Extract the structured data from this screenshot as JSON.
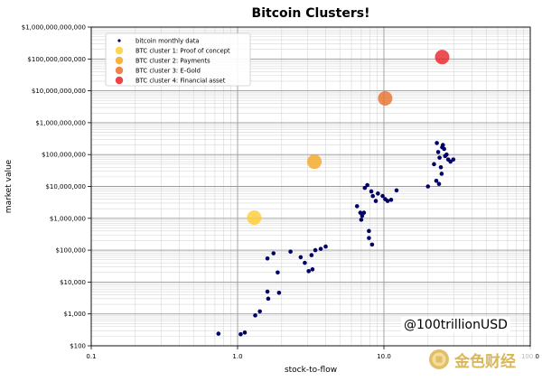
{
  "chart_data": {
    "type": "scatter",
    "title": "Bitcoin Clusters!",
    "xlabel": "stock-to-flow",
    "ylabel": "market value",
    "x_scale": "log",
    "y_scale": "log",
    "xlim": [
      0.1,
      100.0
    ],
    "ylim": [
      100,
      1000000000000
    ],
    "x_ticks": [
      {
        "value": 0.1,
        "label": "0.1"
      },
      {
        "value": 1.0,
        "label": "1.0"
      },
      {
        "value": 10.0,
        "label": "10.0"
      },
      {
        "value": 100.0,
        "label": "100.0"
      }
    ],
    "y_ticks": [
      {
        "value": 100,
        "label": "$100"
      },
      {
        "value": 1000,
        "label": "$1,000"
      },
      {
        "value": 10000,
        "label": "$10,000"
      },
      {
        "value": 100000,
        "label": "$100,000"
      },
      {
        "value": 1000000,
        "label": "$1,000,000"
      },
      {
        "value": 10000000,
        "label": "$10,000,000"
      },
      {
        "value": 100000000,
        "label": "$100,000,000"
      },
      {
        "value": 1000000000,
        "label": "$1,000,000,000"
      },
      {
        "value": 10000000000,
        "label": "$10,000,000,000"
      },
      {
        "value": 100000000000,
        "label": "$100,000,000,000"
      },
      {
        "value": 1000000000000,
        "label": "$1,000,000,000,000"
      }
    ],
    "grid": true,
    "legend_position": "top-left",
    "annotation": "@100trillionUSD",
    "series": [
      {
        "name": "bitcoin monthly data",
        "kind": "points",
        "color": "#000066",
        "points": [
          [
            0.74,
            240
          ],
          [
            1.05,
            230
          ],
          [
            1.12,
            260
          ],
          [
            1.32,
            900
          ],
          [
            1.42,
            1200
          ],
          [
            1.6,
            5000
          ],
          [
            1.62,
            3000
          ],
          [
            1.92,
            4600
          ],
          [
            1.88,
            20000
          ],
          [
            1.6,
            55000
          ],
          [
            1.76,
            80000
          ],
          [
            2.3,
            90000
          ],
          [
            2.7,
            60000
          ],
          [
            2.88,
            40000
          ],
          [
            3.06,
            22000
          ],
          [
            3.25,
            25000
          ],
          [
            3.2,
            70000
          ],
          [
            3.4,
            100000
          ],
          [
            3.7,
            110000
          ],
          [
            4.0,
            130000
          ],
          [
            6.55,
            2400000
          ],
          [
            6.9,
            1500000
          ],
          [
            7.1,
            1200000
          ],
          [
            7.3,
            1500000
          ],
          [
            7.0,
            900000
          ],
          [
            7.9,
            400000
          ],
          [
            7.9,
            240000
          ],
          [
            8.3,
            150000
          ],
          [
            7.4,
            9000000
          ],
          [
            7.7,
            11000000
          ],
          [
            8.2,
            7000000
          ],
          [
            8.4,
            5000000
          ],
          [
            8.8,
            3500000
          ],
          [
            9.1,
            6000000
          ],
          [
            9.8,
            5000000
          ],
          [
            10.2,
            4000000
          ],
          [
            10.6,
            3500000
          ],
          [
            11.2,
            3800000
          ],
          [
            12.2,
            7500000
          ],
          [
            20.0,
            10000000
          ],
          [
            22.0,
            50000000
          ],
          [
            22.8,
            15000000
          ],
          [
            23.0,
            230000000
          ],
          [
            23.5,
            120000000
          ],
          [
            24.0,
            80000000
          ],
          [
            24.5,
            40000000
          ],
          [
            24.8,
            25000000
          ],
          [
            25.0,
            170000000
          ],
          [
            25.8,
            150000000
          ],
          [
            26.2,
            90000000
          ],
          [
            26.8,
            100000000
          ],
          [
            27.5,
            70000000
          ],
          [
            28.5,
            60000000
          ],
          [
            29.8,
            70000000
          ],
          [
            23.8,
            12000000
          ],
          [
            25.3,
            200000000
          ]
        ]
      },
      {
        "name": "BTC cluster 1: Proof of concept",
        "kind": "cluster",
        "color": "#ffcc33",
        "points": [
          [
            1.3,
            1050000
          ]
        ]
      },
      {
        "name": "BTC cluster 2: Payments",
        "kind": "cluster",
        "color": "#f5a623",
        "points": [
          [
            3.35,
            60000000
          ]
        ]
      },
      {
        "name": "BTC cluster 3: E-Gold",
        "kind": "cluster",
        "color": "#e8702a",
        "points": [
          [
            10.2,
            5800000000
          ]
        ]
      },
      {
        "name": "BTC cluster 4: Financial asset",
        "kind": "cluster",
        "color": "#e8232a",
        "points": [
          [
            25.0,
            115000000000
          ]
        ]
      }
    ]
  },
  "watermark": {
    "text": "金色财经",
    "logo": "gold-coin-logo-icon"
  }
}
